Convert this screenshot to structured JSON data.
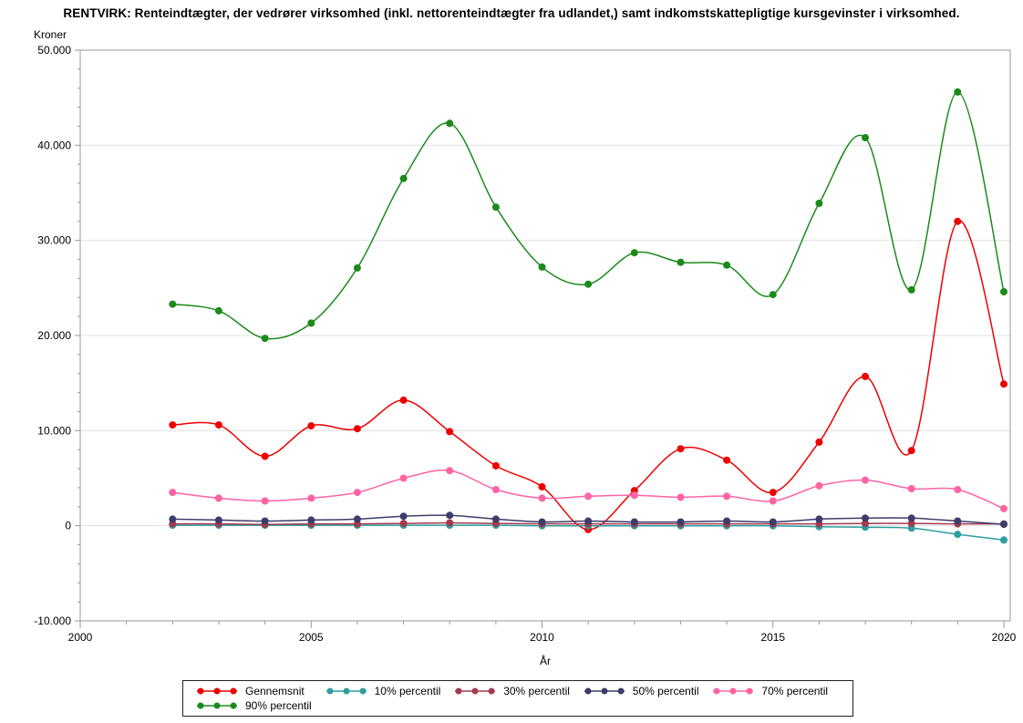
{
  "title": "RENTVIRK: Renteindtægter, der vedrører virksomhed (inkl. nettorenteindtægter fra udlandet,) samt indkomstskattepligtige kursgevinster i virksomhed.",
  "y_axis": {
    "label": "Kroner",
    "ticks": [
      {
        "label": "50.000",
        "value": 50000
      },
      {
        "label": "40.000",
        "value": 40000
      },
      {
        "label": "30.000",
        "value": 30000
      },
      {
        "label": "20.000",
        "value": 20000
      },
      {
        "label": "10.000",
        "value": 10000
      },
      {
        "label": "0",
        "value": 0
      },
      {
        "label": "-10.000",
        "value": -10000
      }
    ],
    "minor_step": 2000
  },
  "x_axis": {
    "label": "År",
    "ticks": [
      {
        "label": "2000",
        "value": 2000
      },
      {
        "label": "2005",
        "value": 2005
      },
      {
        "label": "2010",
        "value": 2010
      },
      {
        "label": "2015",
        "value": 2015
      },
      {
        "label": "2020",
        "value": 2020
      }
    ],
    "minor_step": 1
  },
  "colors": {
    "axis": "#999999",
    "grid": "#E0E0E0",
    "legend_border": "#222222",
    "background": "#FFFFFF"
  },
  "chart_data": {
    "type": "line",
    "title": "RENTVIRK: Renteindtægter, der vedrører virksomhed (inkl. nettorenteindtægter fra udlandet,) samt indkomstskattepligtige kursgevinster i virksomhed.",
    "xlabel": "År",
    "ylabel": "Kroner",
    "xlim": [
      2000,
      2020
    ],
    "ylim": [
      -10000,
      50000
    ],
    "grid": "horizontal-major",
    "legend_position": "bottom",
    "interpolation": "spline",
    "x": [
      2002,
      2003,
      2004,
      2005,
      2006,
      2007,
      2008,
      2009,
      2010,
      2011,
      2012,
      2013,
      2014,
      2015,
      2016,
      2017,
      2018,
      2019,
      2020
    ],
    "series": [
      {
        "name": "Gennemsnit",
        "color": "#EE0000",
        "values": [
          10600,
          10600,
          7300,
          10500,
          10200,
          13200,
          9900,
          6300,
          4100,
          -400,
          3700,
          8100,
          6900,
          3500,
          8800,
          15700,
          7900,
          32000,
          14900
        ]
      },
      {
        "name": "10% percentil",
        "color": "#2E9E9E",
        "values": [
          50,
          50,
          50,
          50,
          50,
          50,
          50,
          50,
          0,
          0,
          0,
          0,
          0,
          0,
          -100,
          -150,
          -250,
          -900,
          -1500
        ]
      },
      {
        "name": "30% percentil",
        "color": "#A23B4E",
        "values": [
          200,
          200,
          150,
          200,
          200,
          250,
          300,
          250,
          200,
          200,
          200,
          200,
          200,
          200,
          200,
          250,
          250,
          200,
          200
        ]
      },
      {
        "name": "50% percentil",
        "color": "#3D3D6B",
        "values": [
          700,
          600,
          500,
          600,
          700,
          1000,
          1100,
          700,
          400,
          500,
          400,
          400,
          500,
          400,
          700,
          800,
          800,
          500,
          150
        ]
      },
      {
        "name": "70% percentil",
        "color": "#FF63A5",
        "values": [
          3500,
          2900,
          2600,
          2900,
          3500,
          5000,
          5800,
          3800,
          2900,
          3100,
          3200,
          3000,
          3100,
          2600,
          4200,
          4800,
          3900,
          3800,
          1800
        ]
      },
      {
        "name": "90% percentil",
        "color": "#1B8A1B",
        "values": [
          23300,
          22600,
          19700,
          21300,
          27100,
          36500,
          42300,
          33500,
          27200,
          25400,
          28700,
          27700,
          27400,
          24300,
          33900,
          40800,
          24800,
          45600,
          24600
        ]
      }
    ]
  }
}
